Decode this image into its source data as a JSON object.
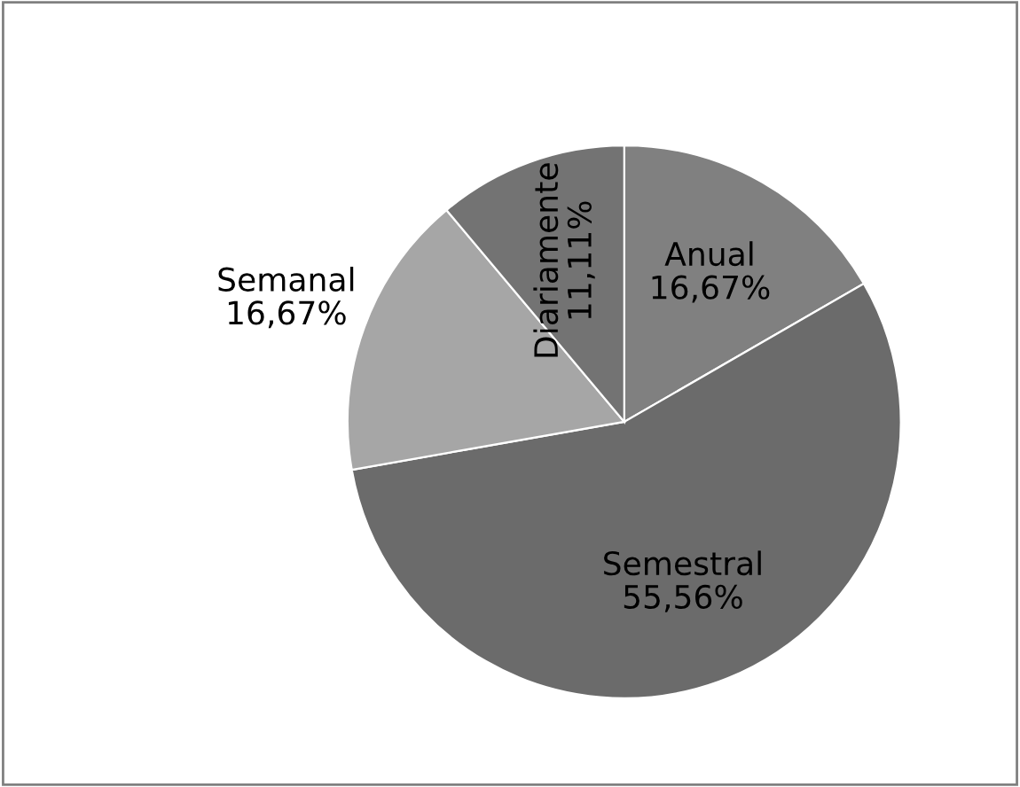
{
  "chart_data": {
    "type": "pie",
    "categories": [
      "Anual",
      "Semestral",
      "Semanal",
      "Diariamente"
    ],
    "values": [
      16.67,
      55.56,
      16.67,
      11.11
    ],
    "value_labels": [
      "16,67%",
      "55,56%",
      "16,67%",
      "11,11%"
    ],
    "colors": [
      "#808080",
      "#6b6b6b",
      "#a6a6a6",
      "#737373"
    ],
    "legend": false
  }
}
